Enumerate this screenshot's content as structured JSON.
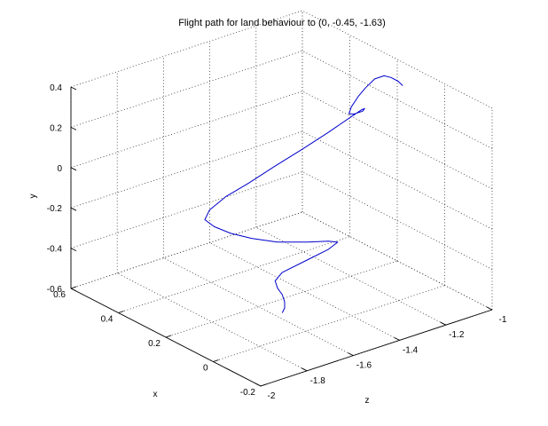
{
  "chart_data": {
    "type": "line",
    "projection": "3d",
    "title": "Flight path for land behaviour to (0, -0.45, -1.63)",
    "xlabel": "x",
    "ylabel": "y",
    "zlabel": "z",
    "xlim": [
      -0.2,
      0.6
    ],
    "ylim": [
      -0.6,
      0.4
    ],
    "zlim": [
      -2,
      -1
    ],
    "x_ticks": [
      "-0.2",
      "0",
      "0.2",
      "0.4",
      "0.6"
    ],
    "y_ticks": [
      "-0.6",
      "-0.4",
      "-0.2",
      "0",
      "0.2",
      "0.4"
    ],
    "z_ticks": [
      "-2",
      "-1.8",
      "-1.6",
      "-1.4",
      "-1.2",
      "-1"
    ],
    "grid": true,
    "series": [
      {
        "color": "#0000cc",
        "points": [
          [
            0.05,
            0.41,
            -1.13
          ],
          [
            0.06,
            0.43,
            -1.14
          ],
          [
            0.07,
            0.45,
            -1.16
          ],
          [
            0.08,
            0.46,
            -1.18
          ],
          [
            0.1,
            0.44,
            -1.2
          ],
          [
            0.11,
            0.4,
            -1.23
          ],
          [
            0.12,
            0.36,
            -1.25
          ],
          [
            0.13,
            0.31,
            -1.27
          ],
          [
            0.15,
            0.26,
            -1.26
          ],
          [
            0.17,
            0.23,
            -1.22
          ],
          [
            0.2,
            0.2,
            -1.15
          ],
          [
            0.24,
            0.17,
            -1.1
          ],
          [
            0.28,
            0.13,
            -1.07
          ],
          [
            0.3,
            0.09,
            -1.1
          ],
          [
            0.3,
            0.05,
            -1.2
          ],
          [
            0.29,
            0.02,
            -1.32
          ],
          [
            0.28,
            -0.01,
            -1.45
          ],
          [
            0.27,
            -0.04,
            -1.57
          ],
          [
            0.27,
            -0.07,
            -1.67
          ],
          [
            0.26,
            -0.1,
            -1.75
          ],
          [
            0.25,
            -0.13,
            -1.78
          ],
          [
            0.23,
            -0.16,
            -1.76
          ],
          [
            0.2,
            -0.19,
            -1.72
          ],
          [
            0.17,
            -0.22,
            -1.66
          ],
          [
            0.14,
            -0.25,
            -1.58
          ],
          [
            0.11,
            -0.27,
            -1.48
          ],
          [
            0.1,
            -0.29,
            -1.4
          ],
          [
            0.1,
            -0.31,
            -1.36
          ],
          [
            0.1,
            -0.33,
            -1.4
          ],
          [
            0.1,
            -0.35,
            -1.5
          ],
          [
            0.1,
            -0.37,
            -1.6
          ],
          [
            0.1,
            -0.4,
            -1.63
          ],
          [
            0.09,
            -0.43,
            -1.63
          ],
          [
            0.08,
            -0.46,
            -1.62
          ],
          [
            0.07,
            -0.49,
            -1.62
          ],
          [
            0.07,
            -0.52,
            -1.62
          ],
          [
            0.08,
            -0.55,
            -1.62
          ]
        ]
      }
    ]
  }
}
